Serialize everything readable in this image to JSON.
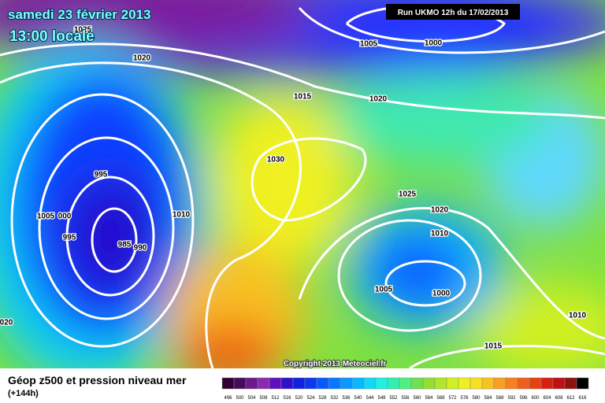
{
  "header": {
    "date": "samedi 23 février 2013",
    "time": "13:00 locale",
    "run": "Run UKMO 12h du 17/02/2013"
  },
  "isobars": [
    1025,
    1020,
    1005,
    1000,
    1015,
    1020,
    1030,
    995,
    1005,
    "000",
    995,
    985,
    990,
    1010,
    1025,
    1020,
    1010,
    1005,
    1000,
    "020",
    1010,
    1015
  ],
  "copyright": "Copyright 2013 Meteociel.fr",
  "legend": {
    "title": "Géop z500 et pression niveau mer",
    "subtitle": "(+144h)",
    "values": [
      496,
      500,
      504,
      508,
      512,
      516,
      520,
      524,
      528,
      532,
      536,
      540,
      544,
      548,
      552,
      556,
      560,
      564,
      568,
      572,
      576,
      580,
      584,
      588,
      592,
      596,
      600,
      604,
      608,
      612,
      616
    ],
    "colors": [
      "#300030",
      "#4a0a5a",
      "#6a1a8a",
      "#8a2ab0",
      "#6010c0",
      "#3010d0",
      "#1020e0",
      "#0838f0",
      "#0858ff",
      "#0878ff",
      "#0898ff",
      "#08b8ff",
      "#10d8f8",
      "#20f0e0",
      "#30f0b0",
      "#50f080",
      "#70e050",
      "#90e030",
      "#b0e828",
      "#d0f020",
      "#f0f020",
      "#f8e020",
      "#f8c020",
      "#f8a020",
      "#f88020",
      "#f06018",
      "#e84010",
      "#d82010",
      "#c01010",
      "#901010",
      "#000000"
    ]
  }
}
